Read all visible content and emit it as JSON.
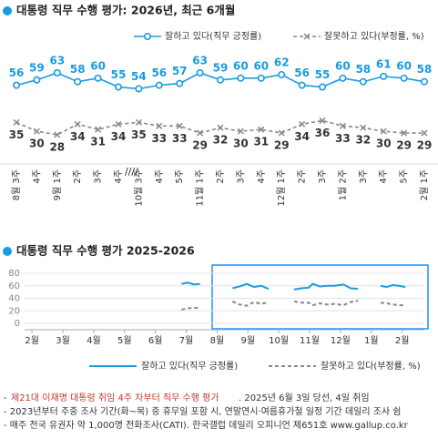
{
  "chart_data": [
    {
      "type": "line",
      "title": "대통령 직무 수행 평가: 2026년, 최근 6개월",
      "categories": [
        "8월 3주",
        "4주",
        "9월 1주",
        "2주",
        "3주",
        "4주",
        "10월 3주",
        "4주",
        "5주",
        "11월 1주",
        "2주",
        "3주",
        "4주",
        "12월 1주",
        "2주",
        "3주",
        "1월 2주",
        "3주",
        "4주",
        "5주",
        "2월 1주"
      ],
      "series": [
        {
          "name": "잘하고 있다(직무 긍정률)",
          "color": "#1a9be0",
          "values": [
            56,
            59,
            63,
            58,
            60,
            55,
            54,
            56,
            57,
            63,
            59,
            60,
            60,
            62,
            56,
            55,
            60,
            58,
            61,
            60,
            58
          ]
        },
        {
          "name": "잘못하고 있다(부정률, %)",
          "color": "#888888",
          "values": [
            35,
            30,
            28,
            34,
            31,
            34,
            35,
            33,
            33,
            29,
            32,
            30,
            31,
            29,
            34,
            36,
            33,
            32,
            30,
            29,
            29
          ]
        }
      ]
    },
    {
      "type": "line",
      "title": "대통령 직무 수행 평가 2025-2026",
      "x": [
        6.85,
        7.05,
        7.25,
        7.45,
        8.0,
        8.5,
        8.73,
        8.97,
        9.2,
        9.43,
        9.67,
        10.1,
        10.5,
        10.73,
        10.97,
        11.1,
        11.33,
        11.57,
        11.8,
        12.1,
        12.33,
        12.57,
        12.9,
        13.3,
        13.5,
        13.7,
        13.9,
        14.1
      ],
      "xlim": [
        1.76,
        14.72
      ],
      "xticks": [
        {
          "value": 2,
          "label": "2월"
        },
        {
          "value": 3,
          "label": "3월"
        },
        {
          "value": 4,
          "label": "4월"
        },
        {
          "value": 5,
          "label": "5월"
        },
        {
          "value": 6,
          "label": "6월"
        },
        {
          "value": 7,
          "label": "7월"
        },
        {
          "value": 8,
          "label": "8월"
        },
        {
          "value": 9,
          "label": "9월"
        },
        {
          "value": 10,
          "label": "10월"
        },
        {
          "value": 11,
          "label": "11월"
        },
        {
          "value": 12,
          "label": "12월"
        },
        {
          "value": 13,
          "label": "1월"
        },
        {
          "value": 14,
          "label": "2월"
        }
      ],
      "ylim": [
        0,
        80
      ],
      "yticks": [
        0,
        20,
        40,
        60,
        80
      ],
      "grid": true,
      "series": [
        {
          "name": "잘하고 있다(직무 긍정률)",
          "color": "#1a9be0",
          "values": [
            63,
            65,
            62,
            63,
            null,
            56,
            59,
            63,
            58,
            60,
            55,
            null,
            54,
            56,
            57,
            63,
            59,
            60,
            60,
            62,
            56,
            55,
            null,
            60,
            58,
            61,
            60,
            58
          ]
        },
        {
          "name": "잘못하고 있다(부정률, %)",
          "color": "#888888",
          "values": [
            22,
            24,
            25,
            24,
            null,
            35,
            30,
            28,
            34,
            31,
            34,
            null,
            35,
            33,
            33,
            29,
            32,
            30,
            31,
            29,
            34,
            36,
            null,
            33,
            32,
            30,
            29,
            29
          ]
        }
      ]
    }
  ],
  "notes": [
    "- ",
    "제21대 이재명 대통령 취임 4주 차부터 직무 수행 평가",
    ". 2025년 6월 3일 당선, 4일 취임",
    "- 2023년부터 주중 조사 기간(화~목) 중 휴무일 포함 시, 연말연시·여름휴가철 일정 기간 데일리 조사 쉼",
    "- 매주 전국 유권자 약 1,000명 전화조사(CATI). 한국갤럽 데일리 오피니언 제651호 www.gallup.co.kr"
  ]
}
